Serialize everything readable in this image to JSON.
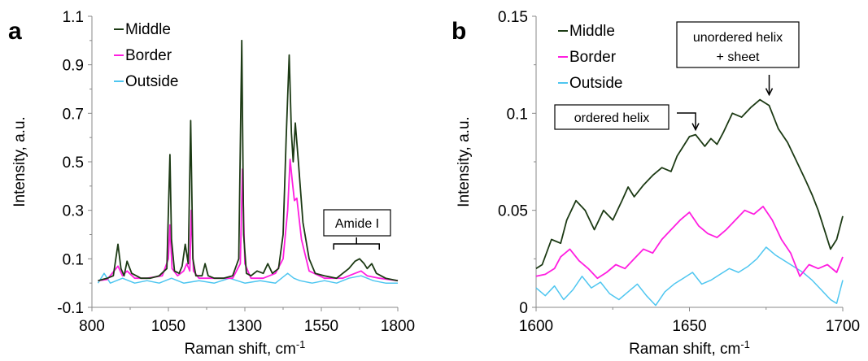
{
  "colors": {
    "middle": "#1c3a14",
    "border": "#ff1ee0",
    "outside": "#4ec6f0"
  },
  "chart_data": [
    {
      "panel": "a",
      "type": "line",
      "xlabel": "Raman shift, cm",
      "xlabel_sup": "-1",
      "ylabel": "Intensity, a.u.",
      "xlim": [
        800,
        1800
      ],
      "ylim": [
        -0.1,
        1.1
      ],
      "xticks": [
        "800",
        "1050",
        "1300",
        "1550",
        "1800"
      ],
      "yticks": [
        "-0.1",
        "0.1",
        "0.3",
        "0.5",
        "0.7",
        "0.9",
        "1.1"
      ],
      "legend_position": "top-left",
      "annotations": [
        {
          "text": "Amide I",
          "x": 1665,
          "y": 0.14
        }
      ],
      "series": [
        {
          "name": "Middle",
          "color_key": "middle",
          "x": [
            820,
            850,
            870,
            885,
            895,
            905,
            915,
            930,
            960,
            990,
            1020,
            1045,
            1055,
            1060,
            1070,
            1085,
            1095,
            1105,
            1115,
            1123,
            1130,
            1140,
            1160,
            1170,
            1180,
            1200,
            1230,
            1260,
            1280,
            1290,
            1296,
            1305,
            1320,
            1340,
            1360,
            1375,
            1390,
            1410,
            1425,
            1435,
            1445,
            1452,
            1458,
            1465,
            1475,
            1490,
            1510,
            1530,
            1560,
            1600,
            1640,
            1660,
            1675,
            1690,
            1700,
            1715,
            1730,
            1760,
            1800
          ],
          "y": [
            0.01,
            0.02,
            0.03,
            0.16,
            0.06,
            0.03,
            0.09,
            0.04,
            0.02,
            0.02,
            0.03,
            0.06,
            0.53,
            0.18,
            0.05,
            0.04,
            0.07,
            0.16,
            0.08,
            0.67,
            0.1,
            0.03,
            0.03,
            0.08,
            0.03,
            0.02,
            0.02,
            0.03,
            0.1,
            1.0,
            0.2,
            0.04,
            0.03,
            0.05,
            0.04,
            0.08,
            0.04,
            0.06,
            0.2,
            0.6,
            0.94,
            0.62,
            0.5,
            0.66,
            0.5,
            0.25,
            0.1,
            0.04,
            0.03,
            0.02,
            0.06,
            0.09,
            0.1,
            0.08,
            0.06,
            0.08,
            0.04,
            0.02,
            0.01
          ]
        },
        {
          "name": "Border",
          "color_key": "border",
          "x": [
            820,
            850,
            885,
            900,
            915,
            940,
            980,
            1030,
            1050,
            1055,
            1062,
            1080,
            1100,
            1110,
            1120,
            1125,
            1132,
            1150,
            1200,
            1260,
            1285,
            1292,
            1300,
            1320,
            1360,
            1400,
            1425,
            1440,
            1448,
            1455,
            1462,
            1470,
            1485,
            1510,
            1560,
            1620,
            1660,
            1680,
            1700,
            1740,
            1800
          ],
          "y": [
            0.01,
            0.015,
            0.07,
            0.03,
            0.05,
            0.02,
            0.02,
            0.03,
            0.1,
            0.24,
            0.06,
            0.03,
            0.05,
            0.08,
            0.05,
            0.3,
            0.05,
            0.02,
            0.02,
            0.02,
            0.08,
            0.47,
            0.08,
            0.02,
            0.02,
            0.04,
            0.1,
            0.3,
            0.51,
            0.42,
            0.34,
            0.35,
            0.18,
            0.05,
            0.02,
            0.02,
            0.04,
            0.05,
            0.03,
            0.02,
            0.01
          ]
        },
        {
          "name": "Outside",
          "color_key": "outside",
          "x": [
            820,
            840,
            860,
            880,
            900,
            940,
            980,
            1020,
            1060,
            1100,
            1150,
            1200,
            1250,
            1300,
            1350,
            1400,
            1440,
            1460,
            1480,
            1520,
            1560,
            1600,
            1640,
            1680,
            1720,
            1760,
            1800
          ],
          "y": [
            0.0,
            0.04,
            0.0,
            0.01,
            0.02,
            0.0,
            0.01,
            0.0,
            0.02,
            0.0,
            0.01,
            0.0,
            0.02,
            0.0,
            0.01,
            0.0,
            0.04,
            0.02,
            0.01,
            0.0,
            0.01,
            0.0,
            0.02,
            0.03,
            0.01,
            0.0,
            0.0
          ]
        }
      ]
    },
    {
      "panel": "b",
      "type": "line",
      "xlabel": "Raman shift, cm",
      "xlabel_sup": "-1",
      "ylabel": "Intensity, a.u.",
      "xlim": [
        1600,
        1700
      ],
      "ylim": [
        0,
        0.15
      ],
      "xticks": [
        "1600",
        "1650",
        "1700"
      ],
      "yticks": [
        "0",
        "0.05",
        "0.1",
        "0.15"
      ],
      "legend_position": "top-left",
      "annotations": [
        {
          "text": "ordered helix",
          "arrow_x": 1652,
          "arrow_y": 0.089
        },
        {
          "text": "unordered helix",
          "text2": "+ sheet",
          "arrow_x": 1676,
          "arrow_y": 0.107
        }
      ],
      "series": [
        {
          "name": "Middle",
          "color_key": "middle",
          "x": [
            1600,
            1602,
            1605,
            1608,
            1610,
            1613,
            1616,
            1619,
            1622,
            1625,
            1628,
            1630,
            1632,
            1635,
            1638,
            1641,
            1644,
            1646,
            1648,
            1650,
            1652,
            1655,
            1657,
            1659,
            1661,
            1664,
            1667,
            1670,
            1673,
            1676,
            1679,
            1682,
            1685,
            1688,
            1690,
            1692,
            1694,
            1696,
            1698,
            1700
          ],
          "y": [
            0.02,
            0.022,
            0.035,
            0.033,
            0.045,
            0.055,
            0.05,
            0.04,
            0.05,
            0.045,
            0.055,
            0.062,
            0.057,
            0.063,
            0.068,
            0.072,
            0.07,
            0.078,
            0.083,
            0.088,
            0.089,
            0.083,
            0.087,
            0.084,
            0.09,
            0.1,
            0.098,
            0.103,
            0.107,
            0.104,
            0.092,
            0.085,
            0.075,
            0.065,
            0.058,
            0.05,
            0.04,
            0.03,
            0.035,
            0.047
          ]
        },
        {
          "name": "Border",
          "color_key": "border",
          "x": [
            1600,
            1603,
            1606,
            1608,
            1611,
            1614,
            1617,
            1620,
            1623,
            1626,
            1629,
            1632,
            1635,
            1638,
            1641,
            1644,
            1647,
            1650,
            1653,
            1656,
            1659,
            1662,
            1665,
            1668,
            1671,
            1674,
            1677,
            1680,
            1683,
            1686,
            1689,
            1692,
            1695,
            1698,
            1700
          ],
          "y": [
            0.016,
            0.017,
            0.02,
            0.026,
            0.03,
            0.024,
            0.02,
            0.015,
            0.018,
            0.022,
            0.02,
            0.025,
            0.03,
            0.028,
            0.035,
            0.04,
            0.045,
            0.049,
            0.042,
            0.038,
            0.036,
            0.04,
            0.045,
            0.05,
            0.048,
            0.052,
            0.045,
            0.035,
            0.028,
            0.016,
            0.022,
            0.02,
            0.022,
            0.018,
            0.026
          ]
        },
        {
          "name": "Outside",
          "color_key": "outside",
          "x": [
            1600,
            1603,
            1606,
            1609,
            1612,
            1615,
            1618,
            1621,
            1624,
            1627,
            1630,
            1633,
            1636,
            1639,
            1642,
            1645,
            1648,
            1651,
            1654,
            1657,
            1660,
            1663,
            1666,
            1669,
            1672,
            1675,
            1678,
            1681,
            1684,
            1687,
            1690,
            1693,
            1696,
            1698,
            1700
          ],
          "y": [
            0.01,
            0.006,
            0.011,
            0.004,
            0.009,
            0.016,
            0.01,
            0.013,
            0.007,
            0.004,
            0.008,
            0.012,
            0.006,
            0.001,
            0.008,
            0.012,
            0.015,
            0.018,
            0.012,
            0.014,
            0.017,
            0.02,
            0.018,
            0.021,
            0.025,
            0.031,
            0.027,
            0.024,
            0.021,
            0.018,
            0.014,
            0.009,
            0.004,
            0.002,
            0.014
          ]
        }
      ]
    }
  ]
}
